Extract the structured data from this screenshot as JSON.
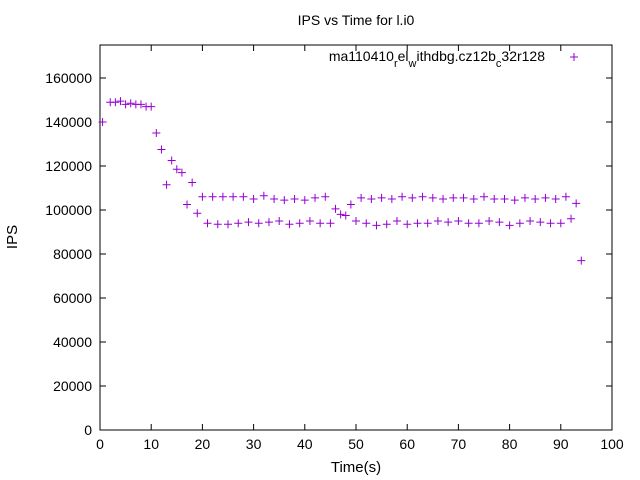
{
  "chart_data": {
    "type": "scatter",
    "title": "IPS vs Time for l.i0",
    "xlabel": "Time(s)",
    "ylabel": "IPS",
    "xlim": [
      0,
      100
    ],
    "ylim": [
      0,
      175000
    ],
    "xticks": [
      0,
      10,
      20,
      30,
      40,
      50,
      60,
      70,
      80,
      90,
      100
    ],
    "yticks": [
      0,
      20000,
      40000,
      60000,
      80000,
      100000,
      120000,
      140000,
      160000
    ],
    "grid": false,
    "legend_position": "top-right",
    "series": [
      {
        "name": "ma110410_rel_withdbg.cz12b_c32r128",
        "name_parts": {
          "a": "ma110410",
          "b": "r",
          "c": "el",
          "d": "w",
          "e": "ithdbg.cz12b",
          "f": "c",
          "g": "32r128"
        },
        "color": "#9400d3",
        "marker": "plus",
        "points": [
          [
            0.5,
            140000
          ],
          [
            2,
            149000
          ],
          [
            3,
            149000
          ],
          [
            4,
            149500
          ],
          [
            5,
            148000
          ],
          [
            6,
            148500
          ],
          [
            7,
            148000
          ],
          [
            8,
            148000
          ],
          [
            9,
            147000
          ],
          [
            10,
            147000
          ],
          [
            11,
            135000
          ],
          [
            12,
            127500
          ],
          [
            13,
            111500
          ],
          [
            14,
            122500
          ],
          [
            15,
            118500
          ],
          [
            16,
            117000
          ],
          [
            17,
            102500
          ],
          [
            18,
            112500
          ],
          [
            19,
            98500
          ],
          [
            20,
            106000
          ],
          [
            21,
            94000
          ],
          [
            22,
            106000
          ],
          [
            23,
            93500
          ],
          [
            24,
            106000
          ],
          [
            25,
            93500
          ],
          [
            26,
            106000
          ],
          [
            27,
            94000
          ],
          [
            28,
            106000
          ],
          [
            29,
            94500
          ],
          [
            30,
            105000
          ],
          [
            31,
            94000
          ],
          [
            32,
            106500
          ],
          [
            33,
            94500
          ],
          [
            34,
            105000
          ],
          [
            35,
            95000
          ],
          [
            36,
            104500
          ],
          [
            37,
            93500
          ],
          [
            38,
            105000
          ],
          [
            39,
            94000
          ],
          [
            40,
            104500
          ],
          [
            41,
            95000
          ],
          [
            42,
            105500
          ],
          [
            43,
            94000
          ],
          [
            44,
            106000
          ],
          [
            45,
            94000
          ],
          [
            46,
            100500
          ],
          [
            47,
            98000
          ],
          [
            48,
            97500
          ],
          [
            49,
            102500
          ],
          [
            50,
            95000
          ],
          [
            51,
            105500
          ],
          [
            52,
            94000
          ],
          [
            53,
            105000
          ],
          [
            54,
            93000
          ],
          [
            55,
            105500
          ],
          [
            56,
            93500
          ],
          [
            57,
            105000
          ],
          [
            58,
            95000
          ],
          [
            59,
            106000
          ],
          [
            60,
            93500
          ],
          [
            61,
            105500
          ],
          [
            62,
            94000
          ],
          [
            63,
            106000
          ],
          [
            64,
            94000
          ],
          [
            65,
            105500
          ],
          [
            66,
            95000
          ],
          [
            67,
            105000
          ],
          [
            68,
            94500
          ],
          [
            69,
            105500
          ],
          [
            70,
            95000
          ],
          [
            71,
            105500
          ],
          [
            72,
            94000
          ],
          [
            73,
            105000
          ],
          [
            74,
            94000
          ],
          [
            75,
            106000
          ],
          [
            76,
            95000
          ],
          [
            77,
            105000
          ],
          [
            78,
            94500
          ],
          [
            79,
            105000
          ],
          [
            80,
            93000
          ],
          [
            81,
            104500
          ],
          [
            82,
            94000
          ],
          [
            83,
            105500
          ],
          [
            84,
            95000
          ],
          [
            85,
            105000
          ],
          [
            86,
            94500
          ],
          [
            87,
            105500
          ],
          [
            88,
            94000
          ],
          [
            89,
            105000
          ],
          [
            90,
            94000
          ],
          [
            91,
            106000
          ],
          [
            92,
            96000
          ],
          [
            93,
            103000
          ],
          [
            94,
            77000
          ]
        ]
      }
    ]
  }
}
